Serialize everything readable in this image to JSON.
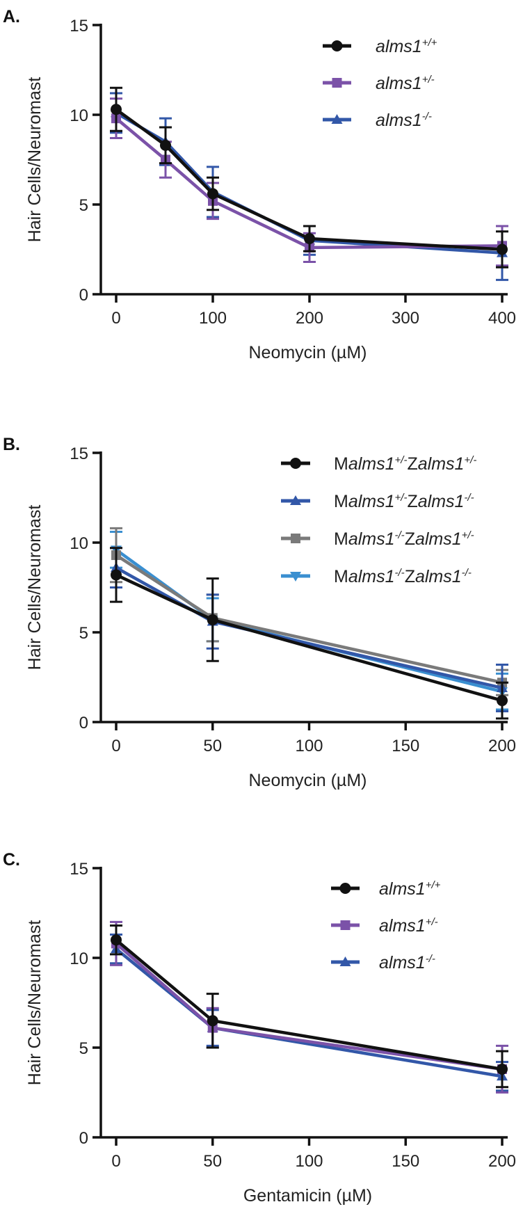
{
  "chart_data": [
    {
      "panel_label": "A.",
      "type": "line",
      "xlabel": "Neomycin (µM)",
      "ylabel": "Hair Cells/Neuromast",
      "xlim": [
        0,
        400
      ],
      "ylim": [
        0,
        15
      ],
      "x_scale": "non-uniform",
      "x_ticks": [
        0,
        100,
        200,
        300,
        400
      ],
      "y_ticks": [
        0,
        5,
        10,
        15
      ],
      "x": [
        0,
        50,
        100,
        200,
        400
      ],
      "legend_position": "top-right",
      "series": [
        {
          "legend_segments": [
            {
              "text": "alms1",
              "style": "italic"
            },
            {
              "text": "+/+",
              "style": "sup"
            }
          ],
          "color": "#111111",
          "marker": "circle",
          "values": [
            10.3,
            8.3,
            5.6,
            3.1,
            2.5
          ],
          "errors": [
            1.2,
            1.0,
            0.9,
            0.7,
            1.0
          ]
        },
        {
          "legend_segments": [
            {
              "text": "alms1",
              "style": "italic"
            },
            {
              "text": "+/-",
              "style": "sup"
            }
          ],
          "color": "#7b52a8",
          "marker": "square",
          "values": [
            9.8,
            7.5,
            5.2,
            2.6,
            2.7
          ],
          "errors": [
            1.1,
            1.0,
            1.0,
            0.8,
            1.1
          ]
        },
        {
          "legend_segments": [
            {
              "text": "alms1",
              "style": "italic"
            },
            {
              "text": "-/-",
              "style": "sup"
            }
          ],
          "color": "#3257a8",
          "marker": "triangle",
          "values": [
            10.1,
            8.5,
            5.7,
            3.0,
            2.3
          ],
          "errors": [
            1.1,
            1.3,
            1.4,
            0.8,
            1.5
          ]
        }
      ]
    },
    {
      "panel_label": "B.",
      "type": "line",
      "xlabel": "Neomycin (µM)",
      "ylabel": "Hair Cells/Neuromast",
      "xlim": [
        0,
        200
      ],
      "ylim": [
        0,
        15
      ],
      "x_scale": "linear",
      "x_ticks": [
        0,
        50,
        100,
        150,
        200
      ],
      "y_ticks": [
        0,
        5,
        10,
        15
      ],
      "x": [
        0,
        50,
        200
      ],
      "legend_position": "top-right",
      "series": [
        {
          "legend_segments": [
            {
              "text": "M",
              "style": "normal"
            },
            {
              "text": "alms1",
              "style": "italic"
            },
            {
              "text": "+/-",
              "style": "sup"
            },
            {
              "text": "Z",
              "style": "normal"
            },
            {
              "text": "alms1",
              "style": "italic"
            },
            {
              "text": "+/-",
              "style": "sup"
            }
          ],
          "color": "#111111",
          "marker": "circle",
          "values": [
            8.2,
            5.7,
            1.2
          ],
          "errors": [
            1.5,
            2.3,
            1.0
          ]
        },
        {
          "legend_segments": [
            {
              "text": "M",
              "style": "normal"
            },
            {
              "text": "alms1",
              "style": "italic"
            },
            {
              "text": "+/-",
              "style": "sup"
            },
            {
              "text": "Z",
              "style": "normal"
            },
            {
              "text": "alms1",
              "style": "italic"
            },
            {
              "text": "-/-",
              "style": "sup"
            }
          ],
          "color": "#3257a8",
          "marker": "triangle",
          "values": [
            8.6,
            5.6,
            1.9
          ],
          "errors": [
            1.1,
            1.5,
            1.3
          ]
        },
        {
          "legend_segments": [
            {
              "text": "M",
              "style": "normal"
            },
            {
              "text": "alms1",
              "style": "italic"
            },
            {
              "text": "-/-",
              "style": "sup"
            },
            {
              "text": "Z",
              "style": "normal"
            },
            {
              "text": "alms1",
              "style": "italic"
            },
            {
              "text": "+/-",
              "style": "sup"
            }
          ],
          "color": "#7a7a7a",
          "marker": "square",
          "values": [
            9.3,
            5.8,
            2.2
          ],
          "errors": [
            1.5,
            1.3,
            0.7
          ]
        },
        {
          "legend_segments": [
            {
              "text": "M",
              "style": "normal"
            },
            {
              "text": "alms1",
              "style": "italic"
            },
            {
              "text": "-/-",
              "style": "sup"
            },
            {
              "text": "Z",
              "style": "normal"
            },
            {
              "text": "alms1",
              "style": "italic"
            },
            {
              "text": "-/-",
              "style": "sup"
            }
          ],
          "color": "#3a8fd0",
          "marker": "triangle-down",
          "values": [
            9.6,
            5.7,
            1.7
          ],
          "errors": [
            1.0,
            1.2,
            1.0
          ]
        }
      ]
    },
    {
      "panel_label": "C.",
      "type": "line",
      "xlabel": "Gentamicin (µM)",
      "ylabel": "Hair Cells/Neuromast",
      "xlim": [
        0,
        200
      ],
      "ylim": [
        0,
        15
      ],
      "x_scale": "linear",
      "x_ticks": [
        0,
        50,
        100,
        150,
        200
      ],
      "y_ticks": [
        0,
        5,
        10,
        15
      ],
      "x": [
        0,
        50,
        200
      ],
      "legend_position": "top-right",
      "series": [
        {
          "legend_segments": [
            {
              "text": "alms1",
              "style": "italic"
            },
            {
              "text": "+/+",
              "style": "sup"
            }
          ],
          "color": "#111111",
          "marker": "circle",
          "values": [
            11.0,
            6.5,
            3.8
          ],
          "errors": [
            0.8,
            1.5,
            1.0
          ]
        },
        {
          "legend_segments": [
            {
              "text": "alms1",
              "style": "italic"
            },
            {
              "text": "+/-",
              "style": "sup"
            }
          ],
          "color": "#7b52a8",
          "marker": "square",
          "values": [
            10.8,
            6.1,
            3.8
          ],
          "errors": [
            1.2,
            1.1,
            1.3
          ]
        },
        {
          "legend_segments": [
            {
              "text": "alms1",
              "style": "italic"
            },
            {
              "text": "-/-",
              "style": "sup"
            }
          ],
          "color": "#3257a8",
          "marker": "triangle",
          "values": [
            10.5,
            6.1,
            3.4
          ],
          "errors": [
            0.8,
            1.0,
            0.8
          ]
        }
      ]
    }
  ]
}
